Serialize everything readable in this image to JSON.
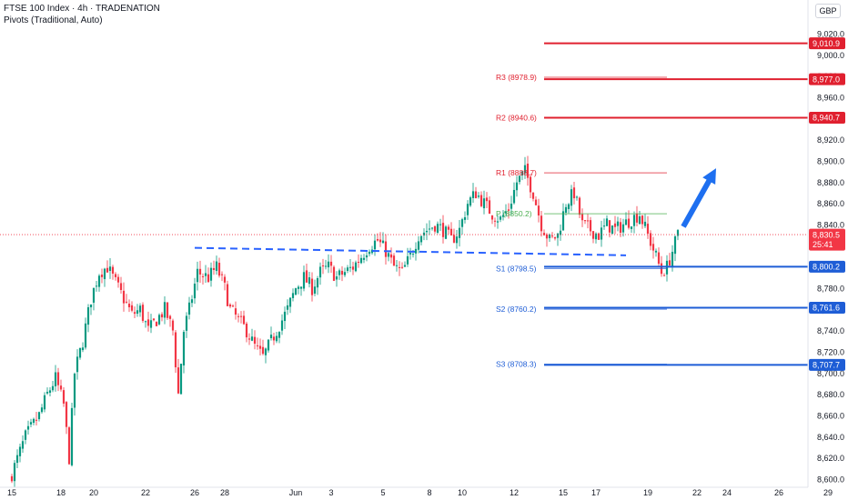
{
  "header": {
    "title": "FTSE 100 Index · 4h · TRADENATION",
    "indicator": "Pivots (Traditional, Auto)",
    "currency": "GBP"
  },
  "colors": {
    "up": "#089981",
    "down": "#f23645",
    "support": "#1e5dd6",
    "resistance": "#e0202f",
    "pivot": "#4caf50",
    "neckline": "#2962ff",
    "arrow": "#1e6ff0"
  },
  "chart_data": {
    "type": "candlestick",
    "ylim": [
      8600,
      9030
    ],
    "y_ticks": [
      "8,600.0",
      "8,620.0",
      "8,640.0",
      "8,660.0",
      "8,680.0",
      "8,700.0",
      "8,720.0",
      "8,740.0",
      "8,760.0",
      "8,780.0",
      "8,800.0",
      "8,820.0",
      "8,840.0",
      "8,860.0",
      "8,880.0",
      "8,900.0",
      "8,920.0",
      "8,940.0",
      "8,960.0",
      "8,980.0",
      "9,000.0",
      "9,020.0"
    ],
    "x_ticks": [
      {
        "label": "15",
        "bar": 0
      },
      {
        "label": "18",
        "bar": 18
      },
      {
        "label": "20",
        "bar": 30
      },
      {
        "label": "22",
        "bar": 49
      },
      {
        "label": "26",
        "bar": 67
      },
      {
        "label": "28",
        "bar": 78
      },
      {
        "label": "Jun",
        "bar": 104
      },
      {
        "label": "3",
        "bar": 117
      },
      {
        "label": "5",
        "bar": 136
      },
      {
        "label": "8",
        "bar": 153
      },
      {
        "label": "10",
        "bar": 165
      },
      {
        "label": "12",
        "bar": 184
      },
      {
        "label": "15",
        "bar": 202
      },
      {
        "label": "17",
        "bar": 214
      },
      {
        "label": "19",
        "bar": 233
      },
      {
        "label": "22",
        "bar": 251
      },
      {
        "label": "24",
        "bar": 262
      },
      {
        "label": "26",
        "bar": 281
      },
      {
        "label": "29",
        "bar": 299
      }
    ],
    "waypoints": [
      [
        0,
        8605
      ],
      [
        5,
        8640
      ],
      [
        10,
        8660
      ],
      [
        13,
        8680
      ],
      [
        16,
        8695
      ],
      [
        19,
        8670
      ],
      [
        21,
        8620
      ],
      [
        23,
        8700
      ],
      [
        26,
        8730
      ],
      [
        29,
        8770
      ],
      [
        32,
        8795
      ],
      [
        35,
        8800
      ],
      [
        38,
        8785
      ],
      [
        41,
        8770
      ],
      [
        44,
        8755
      ],
      [
        47,
        8760
      ],
      [
        50,
        8740
      ],
      [
        53,
        8750
      ],
      [
        56,
        8760
      ],
      [
        59,
        8740
      ],
      [
        61,
        8680
      ],
      [
        63,
        8740
      ],
      [
        65,
        8760
      ],
      [
        68,
        8795
      ],
      [
        72,
        8790
      ],
      [
        75,
        8800
      ],
      [
        78,
        8780
      ],
      [
        80,
        8760
      ],
      [
        83,
        8750
      ],
      [
        86,
        8740
      ],
      [
        89,
        8725
      ],
      [
        92,
        8715
      ],
      [
        95,
        8730
      ],
      [
        98,
        8745
      ],
      [
        101,
        8760
      ],
      [
        104,
        8780
      ],
      [
        107,
        8790
      ],
      [
        110,
        8780
      ],
      [
        113,
        8795
      ],
      [
        116,
        8800
      ],
      [
        119,
        8790
      ],
      [
        122,
        8795
      ],
      [
        125,
        8800
      ],
      [
        128,
        8810
      ],
      [
        131,
        8820
      ],
      [
        134,
        8825
      ],
      [
        137,
        8815
      ],
      [
        140,
        8800
      ],
      [
        143,
        8795
      ],
      [
        146,
        8810
      ],
      [
        149,
        8830
      ],
      [
        152,
        8835
      ],
      [
        155,
        8840
      ],
      [
        158,
        8835
      ],
      [
        161,
        8825
      ],
      [
        164,
        8835
      ],
      [
        167,
        8860
      ],
      [
        170,
        8870
      ],
      [
        173,
        8860
      ],
      [
        176,
        8850
      ],
      [
        179,
        8845
      ],
      [
        182,
        8855
      ],
      [
        185,
        8880
      ],
      [
        188,
        8890
      ],
      [
        191,
        8870
      ],
      [
        194,
        8840
      ],
      [
        197,
        8825
      ],
      [
        200,
        8830
      ],
      [
        203,
        8860
      ],
      [
        206,
        8870
      ],
      [
        209,
        8840
      ],
      [
        212,
        8835
      ],
      [
        215,
        8830
      ],
      [
        218,
        8840
      ],
      [
        221,
        8835
      ],
      [
        224,
        8840
      ],
      [
        227,
        8845
      ],
      [
        230,
        8850
      ],
      [
        233,
        8830
      ],
      [
        236,
        8810
      ],
      [
        238,
        8795
      ],
      [
        240,
        8800
      ],
      [
        242,
        8815
      ],
      [
        244,
        8830
      ]
    ],
    "last_bar": 244,
    "price_labels": [
      {
        "value": 9010.9,
        "label": "9,010.9",
        "kind": "resistance"
      },
      {
        "value": 8977.0,
        "label": "8,977.0",
        "kind": "resistance"
      },
      {
        "value": 8940.7,
        "label": "8,940.7",
        "kind": "resistance"
      },
      {
        "value": 8830.5,
        "label": "8,830.5",
        "kind": "last",
        "countdown": "25:41"
      },
      {
        "value": 8800.2,
        "label": "8,800.2",
        "kind": "support"
      },
      {
        "value": 8761.6,
        "label": "8,761.6",
        "kind": "support"
      },
      {
        "value": 8707.7,
        "label": "8,707.7",
        "kind": "support"
      }
    ],
    "pivots": [
      {
        "label": "R3 (8978.9)",
        "value": 8978.9,
        "kind": "resistance"
      },
      {
        "label": "R2 (8940.6)",
        "value": 8940.6,
        "kind": "resistance"
      },
      {
        "label": "R1 (8888.7)",
        "value": 8888.7,
        "kind": "resistance"
      },
      {
        "label": "P (8850.2)",
        "value": 8850.2,
        "kind": "pivot"
      },
      {
        "label": "S1 (8798.5)",
        "value": 8798.5,
        "kind": "support"
      },
      {
        "label": "S2 (8760.2)",
        "value": 8760.2,
        "kind": "support"
      },
      {
        "label": "S3 (8708.3)",
        "value": 8708.3,
        "kind": "support"
      }
    ],
    "resistance_lines": [
      9010.9,
      8977.0,
      8940.7
    ],
    "support_lines": [
      8800.2,
      8761.6,
      8707.7
    ],
    "neckline": {
      "from_bar": 67,
      "to_bar": 225,
      "from_price": 8818,
      "to_price": 8811
    },
    "arrow": {
      "from_bar": 246,
      "to_bar": 258,
      "from_price": 8838,
      "to_price": 8893
    }
  }
}
